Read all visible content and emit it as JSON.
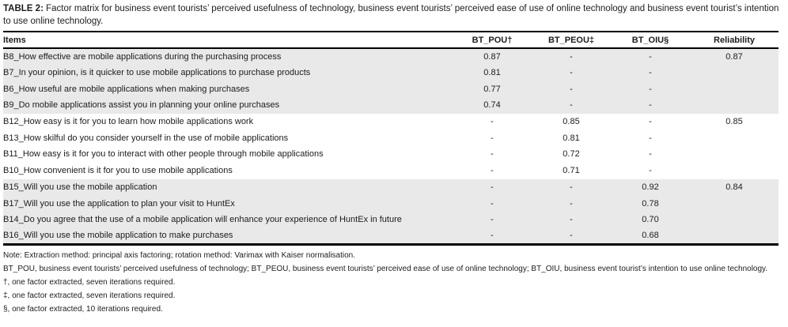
{
  "title": {
    "label": "TABLE 2:",
    "text": "Factor matrix for business event tourists’ perceived usefulness of technology, business event tourists’ perceived ease of use of online technology and business event tourist’s intention to use online technology."
  },
  "table": {
    "columns": [
      {
        "key": "item",
        "label": "Items",
        "align": "left"
      },
      {
        "key": "bt_pou",
        "label": "BT_POU†",
        "align": "center"
      },
      {
        "key": "bt_peou",
        "label": "BT_PEOU‡",
        "align": "center"
      },
      {
        "key": "bt_oiu",
        "label": "BT_OIU§",
        "align": "center"
      },
      {
        "key": "reliability",
        "label": "Reliability",
        "align": "center"
      }
    ],
    "rows": [
      {
        "group": 1,
        "item": "B8_How effective are mobile applications during the purchasing process",
        "bt_pou": "0.87",
        "bt_peou": "-",
        "bt_oiu": "-",
        "reliability": "0.87"
      },
      {
        "group": 1,
        "item": "B7_In your opinion, is it quicker to use mobile applications to purchase products",
        "bt_pou": "0.81",
        "bt_peou": "-",
        "bt_oiu": "-",
        "reliability": ""
      },
      {
        "group": 1,
        "item": "B6_How useful are mobile applications when making purchases",
        "bt_pou": "0.77",
        "bt_peou": "-",
        "bt_oiu": "-",
        "reliability": ""
      },
      {
        "group": 1,
        "item": "B9_Do mobile applications assist you in planning your online purchases",
        "bt_pou": "0.74",
        "bt_peou": "-",
        "bt_oiu": "-",
        "reliability": ""
      },
      {
        "group": 2,
        "item": "B12_How easy is it for you to learn how mobile applications work",
        "bt_pou": "-",
        "bt_peou": "0.85",
        "bt_oiu": "-",
        "reliability": "0.85"
      },
      {
        "group": 2,
        "item": "B13_How skilful do you consider yourself in the use of mobile applications",
        "bt_pou": "-",
        "bt_peou": "0.81",
        "bt_oiu": "-",
        "reliability": ""
      },
      {
        "group": 2,
        "item": "B11_How easy is it for you to interact with other people through mobile applications",
        "bt_pou": "-",
        "bt_peou": "0.72",
        "bt_oiu": "-",
        "reliability": ""
      },
      {
        "group": 2,
        "item": "B10_How convenient is it for you to use mobile applications",
        "bt_pou": "-",
        "bt_peou": "0.71",
        "bt_oiu": "-",
        "reliability": ""
      },
      {
        "group": 3,
        "item": "B15_Will you use the mobile application",
        "bt_pou": "-",
        "bt_peou": "-",
        "bt_oiu": "0.92",
        "reliability": "0.84"
      },
      {
        "group": 3,
        "item": "B17_Will you use the application to plan your visit to HuntEx",
        "bt_pou": "-",
        "bt_peou": "-",
        "bt_oiu": "0.78",
        "reliability": ""
      },
      {
        "group": 3,
        "item": "B14_Do you agree that the use of a mobile application will enhance your experience of HuntEx in future",
        "bt_pou": "-",
        "bt_peou": "-",
        "bt_oiu": "0.70",
        "reliability": ""
      },
      {
        "group": 3,
        "item": "B16_Will you use the mobile application to make purchases",
        "bt_pou": "-",
        "bt_peou": "-",
        "bt_oiu": "0.68",
        "reliability": ""
      }
    ]
  },
  "notes": [
    "Note: Extraction method: principal axis factoring; rotation method: Varimax with Kaiser normalisation.",
    "BT_POU, business event tourists’ perceived usefulness of technology; BT_PEOU, business event tourists’ perceived ease of use of online technology; BT_OIU, business event tourist’s intention to use online technology.",
    "†, one factor extracted, seven iterations required.",
    "‡, one factor extracted, seven iterations required.",
    "§, one factor extracted, 10 iterations required."
  ],
  "colors": {
    "row_shade": "#e9e9e9",
    "rule": "#000000",
    "text": "#1c1c1c"
  }
}
